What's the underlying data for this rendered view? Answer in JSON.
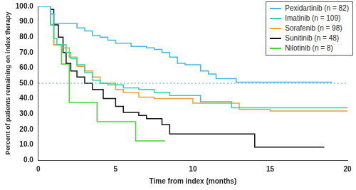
{
  "chart_data": {
    "type": "line",
    "line_style": "step",
    "x_label": "Time from index (months)",
    "y_label": "Percent of patients remaining on index therapy",
    "xlim": [
      0,
      20
    ],
    "xticks": [
      0,
      5,
      10,
      15,
      20
    ],
    "ylim": [
      0,
      100
    ],
    "yticks": [
      {
        "value": 0,
        "label": "0.0"
      },
      {
        "value": 10,
        "label": "10.0"
      },
      {
        "value": 20,
        "label": "20.0"
      },
      {
        "value": 30,
        "label": "30.0"
      },
      {
        "value": 40,
        "label": "40.0"
      },
      {
        "value": 50,
        "label": "50.0"
      },
      {
        "value": 60,
        "label": "60.0"
      },
      {
        "value": 70,
        "label": "70.0"
      },
      {
        "value": 80,
        "label": "80.0"
      },
      {
        "value": 90,
        "label": "90.0"
      },
      {
        "value": 100,
        "label": "100.0"
      }
    ],
    "grid": false,
    "legend": "top-right",
    "hlines": [
      {
        "value": 50,
        "color": "#4aa3c4",
        "line_style": "dotted"
      }
    ],
    "series": [
      {
        "name": "Pexidartinib (n = 82)",
        "color": "#45b8e0",
        "x": [
          0,
          0.8,
          1.0,
          2.5,
          3.0,
          3.5,
          4.0,
          4.5,
          5.0,
          6.0,
          7.0,
          7.5,
          8.0,
          8.5,
          9.0,
          9.5,
          10.5,
          11.0,
          11.5,
          12.8,
          19.0
        ],
        "values": [
          100,
          95,
          89,
          86,
          84,
          81,
          80,
          78,
          76,
          74,
          73,
          72,
          70,
          67,
          63,
          62,
          58,
          56,
          53,
          50.7,
          50.7
        ]
      },
      {
        "name": "Imatinib (n = 109)",
        "color": "#2fd3a3",
        "x": [
          0,
          0.5,
          0.8,
          1.0,
          1.2,
          1.8,
          2.1,
          2.5,
          3.0,
          3.5,
          4.0,
          4.5,
          5.5,
          6.5,
          7.5,
          8.5,
          10.5,
          12.5,
          20.0
        ],
        "values": [
          100,
          100,
          88,
          79,
          75,
          70,
          66,
          62,
          57,
          52,
          50,
          49,
          47,
          46,
          44,
          42,
          38,
          34,
          34
        ]
      },
      {
        "name": "Sorafenib (n = 98)",
        "color": "#f0a030",
        "x": [
          0,
          0.8,
          1.0,
          1.5,
          2.0,
          2.5,
          3.0,
          3.5,
          4.0,
          5.0,
          5.5,
          6.5,
          7.5,
          10.0,
          13.0,
          15.0,
          20.0
        ],
        "values": [
          100,
          88,
          75,
          73,
          67,
          61,
          58,
          54,
          50,
          46,
          44,
          41,
          40,
          37,
          33,
          32,
          32
        ]
      },
      {
        "name": "Sunitinib (n = 48)",
        "color": "#111111",
        "x": [
          0,
          0.8,
          1.0,
          1.3,
          1.6,
          1.8,
          2.1,
          2.5,
          3.0,
          3.5,
          4.2,
          5.0,
          5.5,
          6.5,
          7.0,
          8.0,
          8.5,
          14.0,
          18.5
        ],
        "values": [
          100,
          98,
          88,
          80,
          70,
          63,
          58,
          54,
          50,
          46,
          40,
          35,
          31,
          29,
          27,
          23,
          17,
          8.5,
          8.5
        ]
      },
      {
        "name": "Nilotinib (n = 8)",
        "color": "#46d335",
        "x": [
          0,
          0.8,
          1.0,
          1.5,
          2.0,
          3.8,
          6.3,
          8.2
        ],
        "values": [
          100,
          88,
          75,
          62.5,
          37.5,
          25,
          12.5,
          12.5
        ]
      }
    ]
  }
}
